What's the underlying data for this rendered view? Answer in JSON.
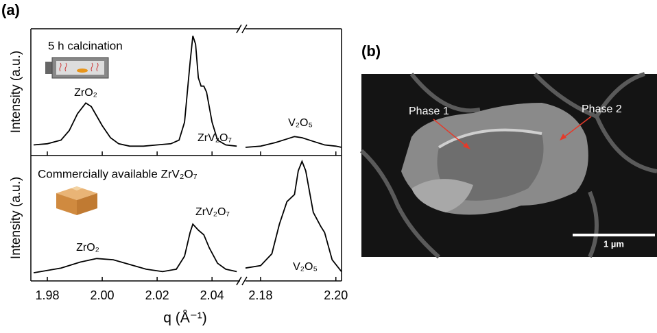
{
  "panel_a_label": "(a)",
  "panel_b_label": "(b)",
  "chart_data": [
    {
      "type": "line",
      "annotations": [
        "5 h calcination",
        "ZrO₂",
        "ZrV₂O₇",
        "V₂O₅"
      ],
      "y_label": "Intensity (a.u.)",
      "color": "#000000",
      "xlims": [
        [
          1.974,
          2.0502
        ],
        [
          2.176,
          2.2015
        ]
      ],
      "ylim": [
        0,
        1
      ],
      "segments": [
        {
          "x": [
            1.975,
            1.98,
            1.985,
            1.988,
            1.991,
            1.994,
            1.996,
            1.998,
            2.0,
            2.003,
            2.006,
            2.01,
            2.015,
            2.02,
            2.025,
            2.028,
            2.03,
            2.032,
            2.033,
            2.034,
            2.035,
            2.036,
            2.037,
            2.038,
            2.04,
            2.042,
            2.045,
            2.049
          ],
          "values": [
            0.06,
            0.07,
            0.1,
            0.18,
            0.32,
            0.41,
            0.38,
            0.3,
            0.22,
            0.12,
            0.07,
            0.05,
            0.05,
            0.06,
            0.07,
            0.1,
            0.25,
            0.75,
            0.97,
            0.9,
            0.62,
            0.55,
            0.55,
            0.5,
            0.25,
            0.1,
            0.06,
            0.05
          ]
        },
        {
          "x": [
            2.176,
            2.18,
            2.184,
            2.187,
            2.189,
            2.191,
            2.194,
            2.197,
            2.2,
            2.2015
          ],
          "values": [
            0.04,
            0.05,
            0.08,
            0.11,
            0.13,
            0.12,
            0.09,
            0.06,
            0.05,
            0.04
          ]
        }
      ]
    },
    {
      "type": "line",
      "annotations": [
        "Commercially available ZrV₂O₇",
        "ZrO₂",
        "ZrV₂O₇",
        "V₂O₅"
      ],
      "y_label": "Intensity (a.u.)",
      "x_label": "q (Å⁻¹)",
      "color": "#000000",
      "xlims": [
        [
          1.974,
          2.0502
        ],
        [
          2.176,
          2.2015
        ]
      ],
      "ylim": [
        0,
        1
      ],
      "xticks": [
        1.98,
        {
          "value": 2.0,
          "label": "2.00"
        },
        2.02,
        2.04,
        2.18,
        {
          "value": 2.2,
          "label": "2.20"
        }
      ],
      "segments": [
        {
          "x": [
            1.975,
            1.985,
            1.992,
            1.998,
            2.004,
            2.01,
            2.016,
            2.022,
            2.027,
            2.03,
            2.032,
            2.033,
            2.035,
            2.037,
            2.039,
            2.042,
            2.045,
            2.049
          ],
          "values": [
            0.04,
            0.08,
            0.13,
            0.16,
            0.15,
            0.11,
            0.07,
            0.05,
            0.07,
            0.18,
            0.38,
            0.45,
            0.4,
            0.36,
            0.25,
            0.12,
            0.07,
            0.05
          ]
        },
        {
          "x": [
            2.176,
            2.18,
            2.183,
            2.185,
            2.187,
            2.189,
            2.19,
            2.191,
            2.192,
            2.194,
            2.196,
            2.197,
            2.199,
            2.2015
          ],
          "values": [
            0.08,
            0.1,
            0.2,
            0.45,
            0.64,
            0.7,
            0.9,
            0.98,
            0.9,
            0.55,
            0.43,
            0.38,
            0.15,
            0.05
          ]
        }
      ]
    }
  ],
  "sem_image": {
    "labels": [
      "Phase 1",
      "Phase 2"
    ],
    "scale_bar": "1 µm"
  }
}
